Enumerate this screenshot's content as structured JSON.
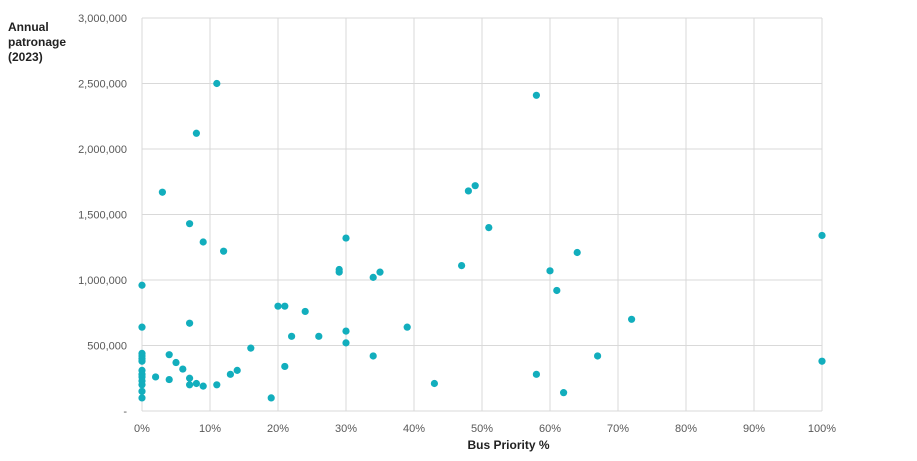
{
  "chart_data": {
    "type": "scatter",
    "title": "",
    "xlabel": "Bus Priority %",
    "ylabel": "Annual\npatronage\n(2023)",
    "xlim": [
      0,
      100
    ],
    "ylim": [
      0,
      3000000
    ],
    "x_ticks": [
      "0%",
      "10%",
      "20%",
      "30%",
      "40%",
      "50%",
      "60%",
      "70%",
      "80%",
      "90%",
      "100%"
    ],
    "y_ticks": [
      "-",
      "500,000",
      "1,000,000",
      "1,500,000",
      "2,000,000",
      "2,500,000",
      "3,000,000"
    ],
    "grid": true,
    "color": "#12aebd",
    "points": [
      [
        0,
        960000
      ],
      [
        0,
        640000
      ],
      [
        0,
        440000
      ],
      [
        0,
        420000
      ],
      [
        0,
        400000
      ],
      [
        0,
        380000
      ],
      [
        0,
        310000
      ],
      [
        0,
        280000
      ],
      [
        0,
        260000
      ],
      [
        0,
        230000
      ],
      [
        0,
        200000
      ],
      [
        0,
        150000
      ],
      [
        0,
        100000
      ],
      [
        2,
        260000
      ],
      [
        3,
        1670000
      ],
      [
        4,
        430000
      ],
      [
        4,
        240000
      ],
      [
        5,
        370000
      ],
      [
        6,
        320000
      ],
      [
        7,
        1430000
      ],
      [
        7,
        670000
      ],
      [
        7,
        250000
      ],
      [
        7,
        200000
      ],
      [
        8,
        2120000
      ],
      [
        8,
        210000
      ],
      [
        9,
        1290000
      ],
      [
        9,
        190000
      ],
      [
        11,
        2500000
      ],
      [
        11,
        200000
      ],
      [
        12,
        1220000
      ],
      [
        13,
        280000
      ],
      [
        14,
        310000
      ],
      [
        16,
        480000
      ],
      [
        19,
        100000
      ],
      [
        20,
        800000
      ],
      [
        21,
        800000
      ],
      [
        21,
        340000
      ],
      [
        22,
        570000
      ],
      [
        24,
        760000
      ],
      [
        26,
        570000
      ],
      [
        29,
        1080000
      ],
      [
        29,
        1060000
      ],
      [
        30,
        1320000
      ],
      [
        30,
        610000
      ],
      [
        30,
        520000
      ],
      [
        34,
        1020000
      ],
      [
        34,
        420000
      ],
      [
        35,
        1060000
      ],
      [
        39,
        640000
      ],
      [
        43,
        210000
      ],
      [
        47,
        1110000
      ],
      [
        48,
        1680000
      ],
      [
        49,
        1720000
      ],
      [
        51,
        1400000
      ],
      [
        58,
        2410000
      ],
      [
        58,
        280000
      ],
      [
        60,
        1070000
      ],
      [
        61,
        920000
      ],
      [
        62,
        140000
      ],
      [
        64,
        1210000
      ],
      [
        67,
        420000
      ],
      [
        72,
        700000
      ],
      [
        100,
        1340000
      ],
      [
        100,
        380000
      ]
    ]
  }
}
